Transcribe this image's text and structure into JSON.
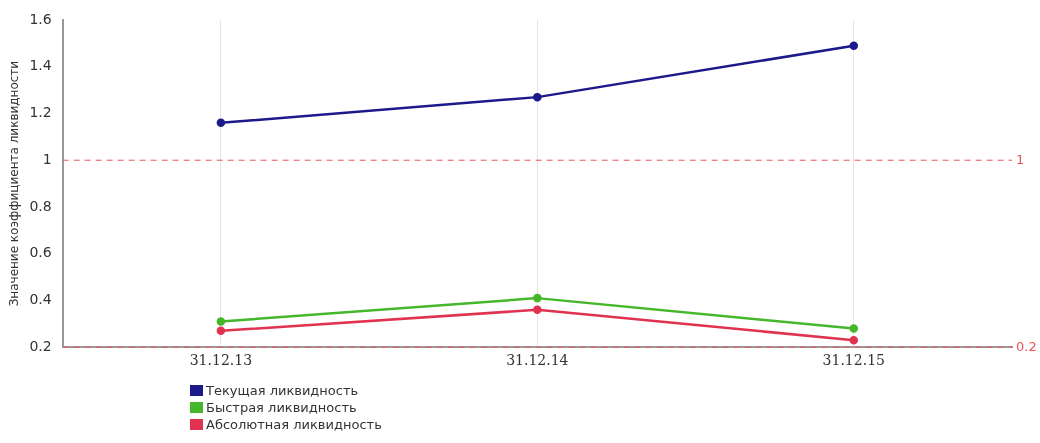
{
  "chart_data": {
    "type": "line",
    "ylabel": "Значение коэффициента ликвидности",
    "categories": [
      "31.12.13",
      "31.12.14",
      "31.12.15"
    ],
    "series": [
      {
        "name": "Текущая ликвидность",
        "color": "#1c1a8a",
        "values": [
          1.16,
          1.27,
          1.49
        ]
      },
      {
        "name": "Быстрая ликвидность",
        "color": "#44b82a",
        "values": [
          0.31,
          0.41,
          0.28
        ]
      },
      {
        "name": "Абсолютная ликвидность",
        "color": "#e0334f",
        "values": [
          0.27,
          0.36,
          0.23
        ]
      }
    ],
    "ylim": [
      0.2,
      1.6
    ],
    "yticks": [
      0.2,
      0.4,
      0.6,
      0.8,
      1,
      1.2,
      1.4,
      1.6
    ],
    "ref_lines": [
      {
        "axis": "y",
        "value": 1,
        "label": "1",
        "color": "#e8545a",
        "line_style": "dashed"
      },
      {
        "axis": "y",
        "value": 0.2,
        "label": "0.2",
        "color": "#e8545a",
        "line_style": "dashed"
      }
    ],
    "grid": "x",
    "legend": "bottom left",
    "marker": "circle",
    "line_style": "solid"
  }
}
